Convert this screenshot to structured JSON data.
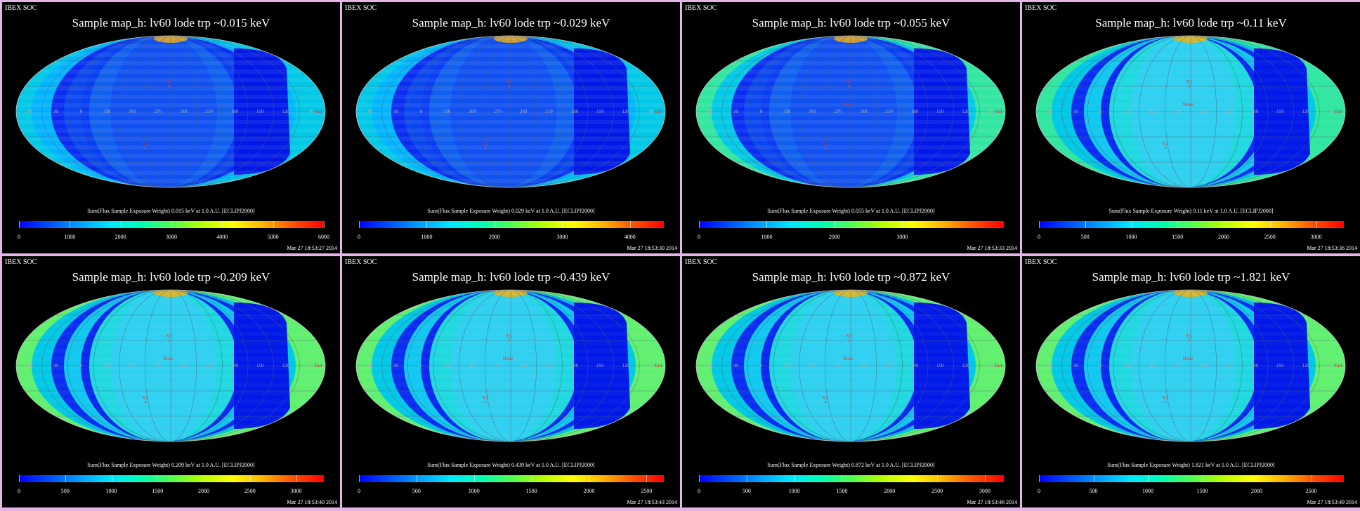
{
  "soc_label": "IBEX SOC",
  "map_labels": {
    "v1": "V1",
    "v2": "V2",
    "nose": "Nose",
    "tail": "Tail",
    "lon_labels": [
      "60",
      "30",
      "0",
      "330",
      "300",
      "270",
      "240",
      "210",
      "180",
      "150",
      "120",
      "90"
    ]
  },
  "colorbar_colors": [
    "#0000ff",
    "#0050ff",
    "#00a0ff",
    "#00e6ff",
    "#00ffb4",
    "#50ff50",
    "#b4ff00",
    "#ffff00",
    "#ffb400",
    "#ff5000",
    "#ff0000"
  ],
  "panels": [
    {
      "title": "Sample map_h: lv60 lode trp ~0.015 keV",
      "caption": "Sum(Flux Sample Exposure Weight) 0.015 keV at 1.0 A.U. [ECLIPJ2000]",
      "ticks": [
        "0",
        "1000",
        "2000",
        "3000",
        "4000",
        "5000",
        "6000"
      ],
      "scale_max": 6000,
      "timestamp": "Mar 27 18:53:27 2014",
      "show_nose": false
    },
    {
      "title": "Sample map_h: lv60 lode trp ~0.029 keV",
      "caption": "Sum(Flux Sample Exposure Weight) 0.029 keV at 1.0 A.U. [ECLIPJ2000]",
      "ticks": [
        "0",
        "1000",
        "2000",
        "3000",
        "4000"
      ],
      "scale_max": 4500,
      "timestamp": "Mar 27 18:53:30 2014",
      "show_nose": false
    },
    {
      "title": "Sample map_h: lv60 lode trp ~0.055 keV",
      "caption": "Sum(Flux Sample Exposure Weight) 0.055 keV at 1.0 A.U. [ECLIPJ2000]",
      "ticks": [
        "0",
        "1000",
        "2000",
        "3000"
      ],
      "scale_max": 4500,
      "timestamp": "Mar 27 18:53:33 2014",
      "show_nose": true
    },
    {
      "title": "Sample map_h: lv60 lode trp ~0.11 keV",
      "caption": "Sum(Flux Sample Exposure Weight) 0.11 keV at 1.0 A.U. [ECLIPJ2000]",
      "ticks": [
        "0",
        "500",
        "1000",
        "1500",
        "2000",
        "2500",
        "3000"
      ],
      "scale_max": 3300,
      "timestamp": "Mar 27 18:53:36 2014",
      "show_nose": true
    },
    {
      "title": "Sample map_h: lv60 lode trp ~0.209 keV",
      "caption": "Sum(Flux Sample Exposure Weight) 0.209 keV at 1.0 A.U. [ECLIPJ2000]",
      "ticks": [
        "0",
        "500",
        "1000",
        "1500",
        "2000",
        "2500",
        "3000"
      ],
      "scale_max": 3300,
      "timestamp": "Mar 27 18:53:40 2014",
      "show_nose": true
    },
    {
      "title": "Sample map_h: lv60 lode trp ~0.439 keV",
      "caption": "Sum(Flux Sample Exposure Weight) 0.439 keV at 1.0 A.U. [ECLIPJ2000]",
      "ticks": [
        "0",
        "500",
        "1000",
        "1500",
        "2000",
        "2500"
      ],
      "scale_max": 2650,
      "timestamp": "Mar 27 18:53:43 2014",
      "show_nose": true
    },
    {
      "title": "Sample map_h: lv60 lode trp ~0.872 keV",
      "caption": "Sum(Flux Sample Exposure Weight) 0.872 keV at 1.0 A.U. [ECLIPJ2000]",
      "ticks": [
        "0",
        "500",
        "1000",
        "1500",
        "2000",
        "2500",
        "3000"
      ],
      "scale_max": 3200,
      "timestamp": "Mar 27 18:53:46 2014",
      "show_nose": true
    },
    {
      "title": "Sample map_h: lv60 lode trp ~1.821 keV",
      "caption": "Sum(Flux Sample Exposure Weight) 1.821 keV at 1.0 A.U. [ECLIPJ2000]",
      "ticks": [
        "0",
        "500",
        "1000",
        "1500",
        "2000",
        "2500"
      ],
      "scale_max": 2800,
      "timestamp": "Mar 27 18:53:49 2014",
      "show_nose": true
    }
  ]
}
